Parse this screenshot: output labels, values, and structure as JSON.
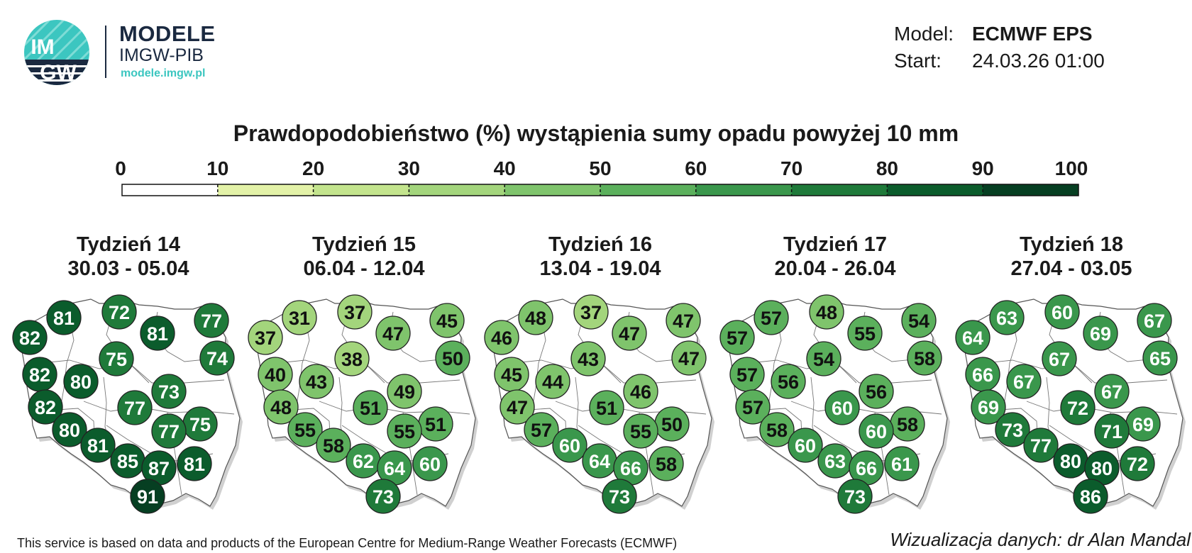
{
  "header": {
    "logo_mark_top": "IM",
    "logo_mark_bottom": "GW",
    "brand_title": "MODELE",
    "brand_subtitle": "IMGW-PIB",
    "brand_url": "modele.imgw.pl",
    "model_label": "Model:",
    "model_value": "ECMWF EPS",
    "start_label": "Start:",
    "start_value": "24.03.26 01:00"
  },
  "title": "Prawdopodobieństwo (%) wystąpienia sumy opadu powyżej 10 mm",
  "colorbar": {
    "ticks": [
      "0",
      "10",
      "20",
      "30",
      "40",
      "50",
      "60",
      "70",
      "80",
      "90",
      "100"
    ],
    "colors": [
      "#ffffff",
      "#fbfbc8",
      "#e3f2a8",
      "#c3e48d",
      "#a3d57c",
      "#7fc46c",
      "#5bb05c",
      "#3a974c",
      "#1f7a3a",
      "#0b5c2c",
      "#063f22"
    ]
  },
  "panels": [
    {
      "week": "Tydzień 14",
      "dates": "30.03 - 05.04",
      "values": [
        82,
        81,
        72,
        81,
        77,
        74,
        75,
        82,
        80,
        73,
        82,
        77,
        75,
        80,
        77,
        81,
        85,
        87,
        81,
        91
      ]
    },
    {
      "week": "Tydzień 15",
      "dates": "06.04 - 12.04",
      "values": [
        37,
        31,
        37,
        47,
        45,
        50,
        38,
        40,
        43,
        49,
        48,
        51,
        51,
        55,
        55,
        58,
        62,
        64,
        60,
        73
      ]
    },
    {
      "week": "Tydzień 16",
      "dates": "13.04 - 19.04",
      "values": [
        46,
        48,
        37,
        47,
        47,
        47,
        43,
        45,
        44,
        46,
        47,
        51,
        50,
        57,
        55,
        60,
        64,
        66,
        58,
        73
      ]
    },
    {
      "week": "Tydzień 17",
      "dates": "20.04 - 26.04",
      "values": [
        57,
        57,
        48,
        55,
        54,
        58,
        54,
        57,
        56,
        56,
        57,
        60,
        58,
        58,
        60,
        60,
        63,
        66,
        61,
        73
      ]
    },
    {
      "week": "Tydzień 18",
      "dates": "27.04 - 03.05",
      "values": [
        64,
        63,
        60,
        69,
        67,
        65,
        67,
        66,
        67,
        67,
        69,
        72,
        69,
        73,
        71,
        77,
        80,
        80,
        72,
        86
      ]
    }
  ],
  "footer": {
    "attribution": "This service is based on data and products of the European Centre for Medium-Range Weather Forecasts (ECMWF)",
    "credit": "Wizualizacja danych: dr Alan Mandal"
  }
}
